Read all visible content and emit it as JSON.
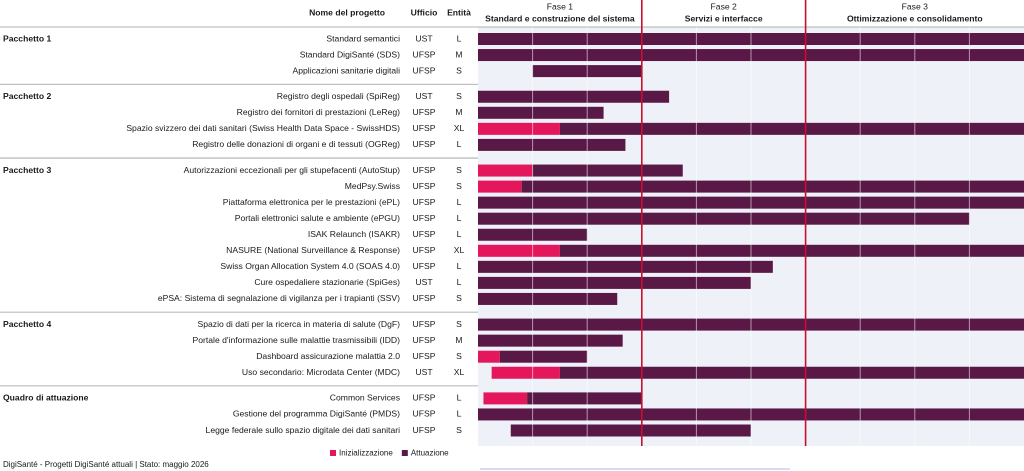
{
  "chart_data": {
    "type": "gantt",
    "columns": [
      "Nome del progetto",
      "Ufficio",
      "Entità"
    ],
    "phases": [
      {
        "name": "Fase 1",
        "title": "Standard e construzione del sistema",
        "start": 0,
        "end": 3
      },
      {
        "name": "Fase 2",
        "title": "Servizi e interfacce",
        "start": 3,
        "end": 6
      },
      {
        "name": "Fase 3",
        "title": "Ottimizzazione e consolidamento",
        "start": 6,
        "end": 10
      }
    ],
    "series": [
      {
        "name": "Inizializzazione",
        "color": "#e4175c"
      },
      {
        "name": "Attuazione",
        "color": "#5a1846"
      }
    ],
    "groups": [
      {
        "name": "Pacchetto 1",
        "tasks": [
          {
            "name": "Standard semantici",
            "office": "UST",
            "size": "L",
            "bars": [
              null,
              [
                0,
                10
              ]
            ]
          },
          {
            "name": "Standard DigiSanté (SDS)",
            "office": "UFSP",
            "size": "M",
            "bars": [
              null,
              [
                0,
                10
              ]
            ]
          },
          {
            "name": "Applicazioni sanitarie digitali",
            "office": "UFSP",
            "size": "S",
            "bars": [
              null,
              [
                1,
                3
              ]
            ]
          }
        ]
      },
      {
        "name": "Pacchetto 2",
        "tasks": [
          {
            "name": "Registro degli ospedali (SpiReg)",
            "office": "UST",
            "size": "S",
            "bars": [
              null,
              [
                0,
                3.5
              ]
            ]
          },
          {
            "name": "Registro dei fornitori di prestazioni (LeReg)",
            "office": "UFSP",
            "size": "M",
            "bars": [
              null,
              [
                0,
                2.3
              ]
            ]
          },
          {
            "name": "Spazio svizzero dei dati sanitari (Swiss Health Data Space - SwissHDS)",
            "office": "UFSP",
            "size": "XL",
            "bars": [
              [
                0,
                1.5
              ],
              [
                1.5,
                10
              ]
            ]
          },
          {
            "name": "Registro delle donazioni di organi e di tessuti (OGReg)",
            "office": "UFSP",
            "size": "L",
            "bars": [
              null,
              [
                0,
                2.7
              ]
            ]
          }
        ]
      },
      {
        "name": "Pacchetto 3",
        "tasks": [
          {
            "name": "Autorizzazioni eccezionali per gli stupefacenti (AutoStup)",
            "office": "UFSP",
            "size": "S",
            "bars": [
              [
                0,
                1
              ],
              [
                1,
                3.75
              ]
            ]
          },
          {
            "name": "MedPsy.Swiss",
            "office": "UFSP",
            "size": "S",
            "bars": [
              [
                0,
                0.8
              ],
              [
                0.8,
                10
              ]
            ]
          },
          {
            "name": "Piattaforma elettronica per le prestazioni (ePL)",
            "office": "UFSP",
            "size": "L",
            "bars": [
              null,
              [
                0,
                10
              ]
            ]
          },
          {
            "name": "Portali elettronici salute e ambiente (ePGU)",
            "office": "UFSP",
            "size": "L",
            "bars": [
              null,
              [
                0,
                9
              ]
            ]
          },
          {
            "name": "ISAK Relaunch (ISAKR)",
            "office": "UFSP",
            "size": "L",
            "bars": [
              null,
              [
                0,
                2
              ]
            ]
          },
          {
            "name": "NASURE (National Surveillance & Response)",
            "office": "UFSP",
            "size": "XL",
            "bars": [
              [
                0,
                1.5
              ],
              [
                1.5,
                10
              ]
            ]
          },
          {
            "name": "Swiss Organ Allocation System 4.0 (SOAS 4.0)",
            "office": "UFSP",
            "size": "L",
            "bars": [
              null,
              [
                0,
                5.4
              ]
            ]
          },
          {
            "name": "Cure ospedaliere stazionarie (SpiGes)",
            "office": "UST",
            "size": "L",
            "bars": [
              null,
              [
                0,
                5
              ]
            ]
          },
          {
            "name": "ePSA: Sistema di segnalazione di vigilanza per i trapianti (SSV)",
            "office": "UFSP",
            "size": "S",
            "bars": [
              null,
              [
                0,
                2.55
              ]
            ]
          }
        ]
      },
      {
        "name": "Pacchetto 4",
        "tasks": [
          {
            "name": "Spazio di dati per la ricerca in materia di salute (DgF)",
            "office": "UFSP",
            "size": "S",
            "bars": [
              null,
              [
                0,
                10
              ]
            ]
          },
          {
            "name": "Portale d'informazione sulle malattie trasmissibili (IDD)",
            "office": "UFSP",
            "size": "M",
            "bars": [
              null,
              [
                0,
                2.65
              ]
            ]
          },
          {
            "name": "Dashboard assicurazione malattia 2.0",
            "office": "UFSP",
            "size": "S",
            "bars": [
              [
                0,
                0.4
              ],
              [
                0.4,
                2
              ]
            ]
          },
          {
            "name": "Uso secondario: Microdata Center (MDC)",
            "office": "UST",
            "size": "XL",
            "bars": [
              [
                0.25,
                1.5
              ],
              [
                1.5,
                10
              ]
            ]
          }
        ]
      },
      {
        "name": "Quadro di attuazione",
        "tasks": [
          {
            "name": "Common Services",
            "office": "UFSP",
            "size": "L",
            "bars": [
              [
                0.1,
                0.9
              ],
              [
                0.9,
                3
              ]
            ]
          },
          {
            "name": "Gestione del programma DigiSanté (PMDS)",
            "office": "UFSP",
            "size": "L",
            "bars": [
              null,
              [
                0,
                10
              ]
            ]
          },
          {
            "name": "Legge federale sullo spazio digitale dei dati sanitari",
            "office": "UFSP",
            "size": "S",
            "bars": [
              null,
              [
                0.6,
                5
              ]
            ]
          }
        ]
      }
    ],
    "xlim": [
      0,
      10
    ],
    "xticks": [
      1,
      2,
      4,
      5,
      7,
      8,
      9
    ],
    "grid": true,
    "footer": "DigiSanté - Progetti DigiSanté attuali | Stato: maggio 2026"
  }
}
